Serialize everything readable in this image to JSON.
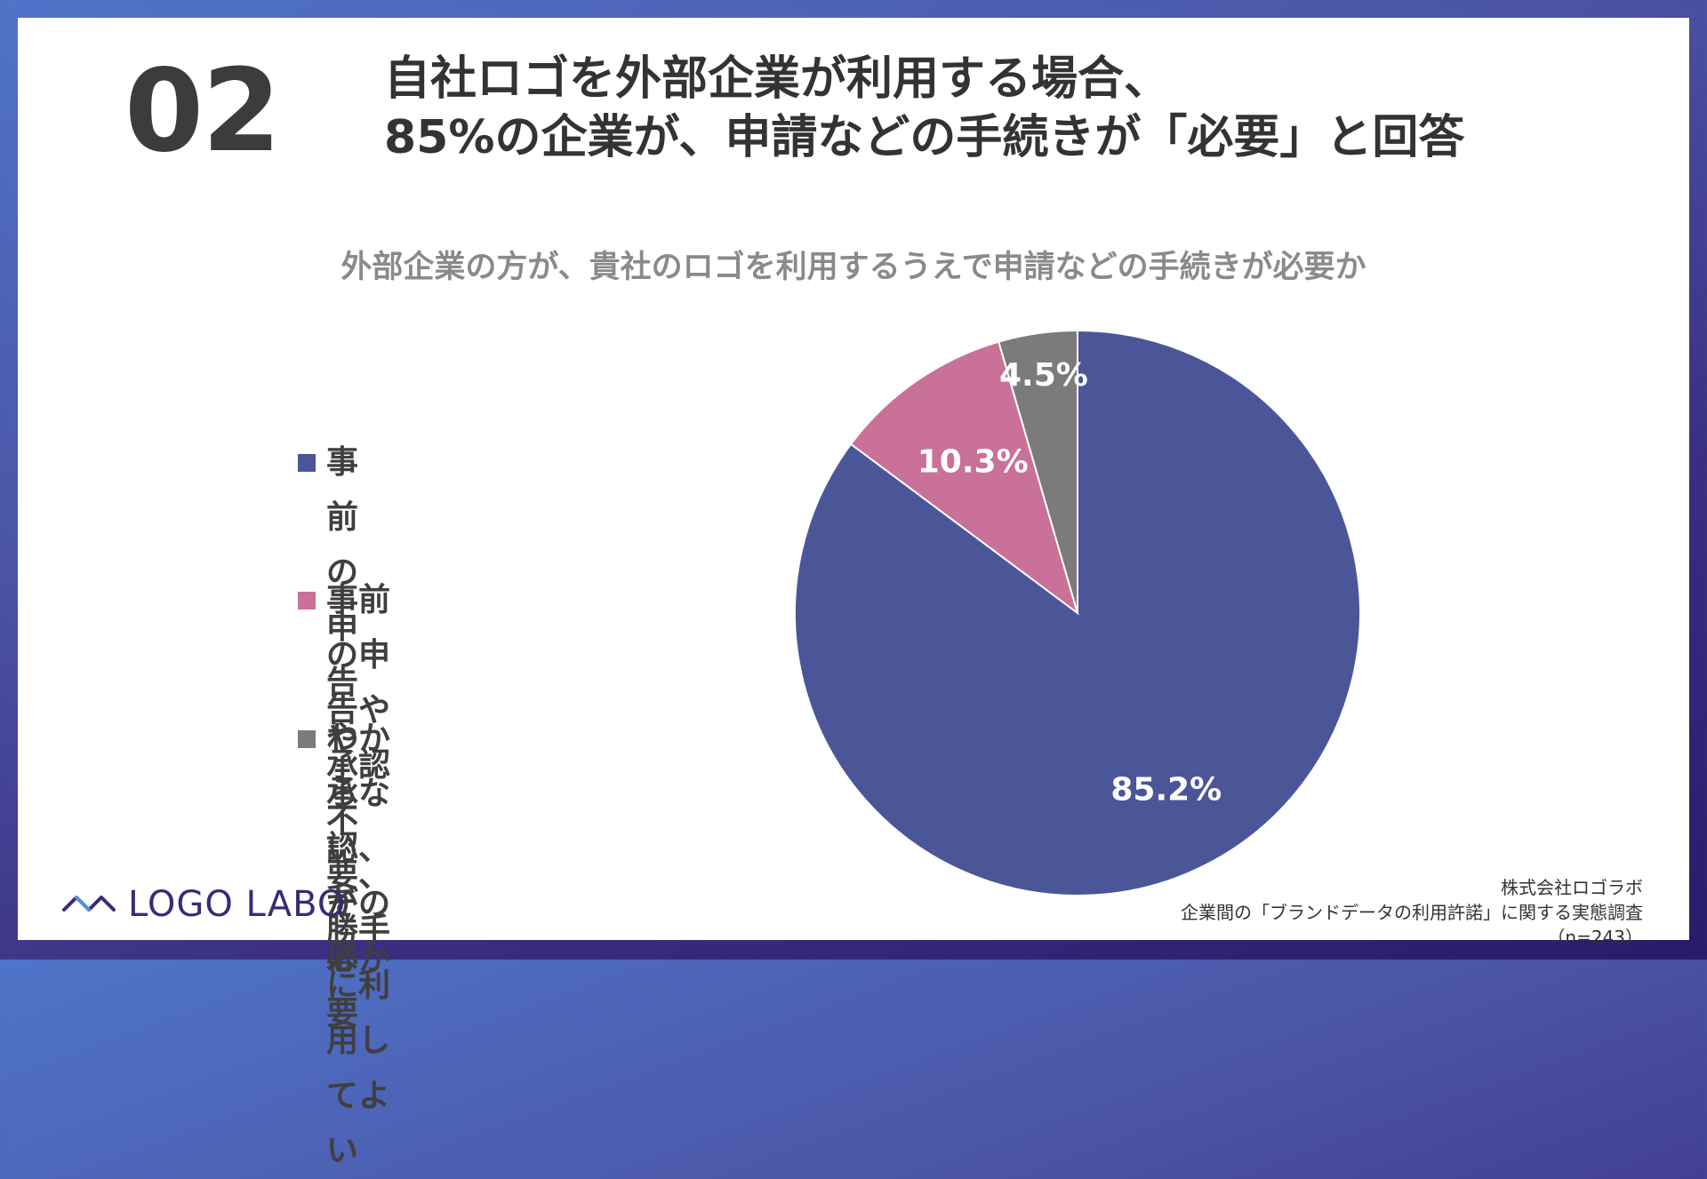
{
  "slide": {
    "number": "02",
    "title_line1": "自社ロゴを外部企業が利用する場合、",
    "title_line2": "85%の企業が、申請などの手続きが「必要」と回答"
  },
  "brand": {
    "name": "LOGO LABO",
    "color": "#3a2a78"
  },
  "source": {
    "company": "株式会社ロゴラボ",
    "survey": "企業間の「ブランドデータの利用許諾」に関する実態調査",
    "sample": "（n=243）"
  },
  "chart_data": {
    "type": "pie",
    "title": "外部企業の方が、貴社のロゴを利用するうえで申請などの手続きが必要か",
    "legend_position": "left",
    "categories": [
      "事前の申告や承認が必要",
      "事前の申告や承認不要、\n勝手に利用してよい",
      "わからない、そのほか"
    ],
    "values": [
      85.2,
      10.3,
      4.5
    ],
    "value_labels": [
      "85.2%",
      "10.3%",
      "4.5%"
    ],
    "colors": [
      "#4b5699",
      "#c97198",
      "#7b7b7b"
    ]
  }
}
